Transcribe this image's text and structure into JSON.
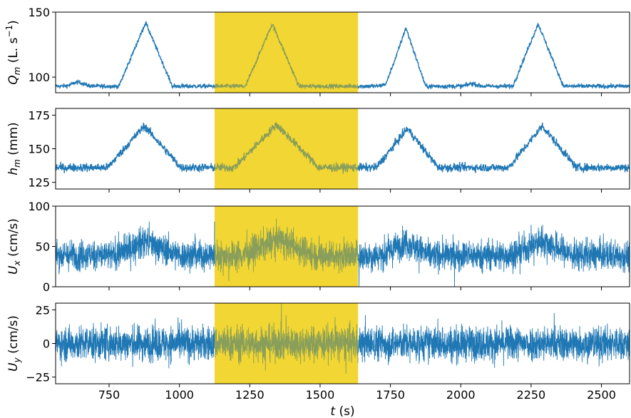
{
  "figure": {
    "highlight_color": "#f2d633",
    "highlight_range": [
      1125,
      1635
    ],
    "series_color": "#1f77b4",
    "overlap_color": "#889e5a"
  },
  "chart_data": [
    {
      "type": "line",
      "id": "Q",
      "ylabel": "Q_m (L. s^-1)",
      "ylabel_parts": {
        "sym": "Q",
        "sub": "m",
        "unit_pre": "(L. s",
        "sup": "−1",
        "unit_post": ")"
      },
      "xlim": [
        560,
        2600
      ],
      "ylim": [
        88,
        150
      ],
      "yticks": [
        100,
        150
      ],
      "ytick_labels": [
        "100",
        "150"
      ],
      "baseline": 93,
      "noise": 1.2,
      "peaks": [
        {
          "center": 880,
          "amplitude": 49,
          "half_width": 95
        },
        {
          "center": 1330,
          "amplitude": 48,
          "half_width": 95
        },
        {
          "center": 1805,
          "amplitude": 45,
          "half_width": 70
        },
        {
          "center": 2275,
          "amplitude": 48,
          "half_width": 90
        }
      ],
      "bumps": [
        {
          "center": 640,
          "amplitude": 3,
          "half_width": 40
        },
        {
          "center": 1740,
          "amplitude": 2,
          "half_width": 30
        },
        {
          "center": 2040,
          "amplitude": 2,
          "half_width": 30
        }
      ]
    },
    {
      "type": "line",
      "id": "h",
      "ylabel": "h_m (mm)",
      "ylabel_parts": {
        "sym": "h",
        "sub": "m",
        "unit_pre": "(mm)",
        "sup": "",
        "unit_post": ""
      },
      "xlim": [
        560,
        2600
      ],
      "ylim": [
        120,
        180
      ],
      "yticks": [
        125,
        150,
        175
      ],
      "ytick_labels": [
        "125",
        "150",
        "175"
      ],
      "baseline": 136,
      "noise": 2.2,
      "peaks": [
        {
          "center": 875,
          "amplitude": 31,
          "half_width": 130
        },
        {
          "center": 1345,
          "amplitude": 32,
          "half_width": 150
        },
        {
          "center": 1810,
          "amplitude": 29,
          "half_width": 110
        },
        {
          "center": 2290,
          "amplitude": 31,
          "half_width": 120
        }
      ],
      "bumps": []
    },
    {
      "type": "line",
      "id": "Ux",
      "ylabel": "U_x (cm/s)",
      "ylabel_parts": {
        "sym": "U",
        "sub": "x",
        "unit_pre": "(cm/s)",
        "sup": "",
        "unit_post": ""
      },
      "xlim": [
        560,
        2600
      ],
      "ylim": [
        0,
        100
      ],
      "yticks": [
        0,
        50,
        100
      ],
      "ytick_labels": [
        "0",
        "50",
        "100"
      ],
      "baseline": 39,
      "noise": 13,
      "peaks": [
        {
          "center": 880,
          "amplitude": 18,
          "half_width": 110
        },
        {
          "center": 1350,
          "amplitude": 20,
          "half_width": 130
        },
        {
          "center": 1805,
          "amplitude": 17,
          "half_width": 80
        },
        {
          "center": 2290,
          "amplitude": 18,
          "half_width": 110
        }
      ],
      "bumps": []
    },
    {
      "type": "line",
      "id": "Uy",
      "ylabel": "U_y (cm/s)",
      "ylabel_parts": {
        "sym": "U",
        "sub": "y",
        "unit_pre": "(cm/s)",
        "sup": "",
        "unit_post": ""
      },
      "xlim": [
        560,
        2600
      ],
      "ylim": [
        -30,
        30
      ],
      "yticks": [
        -25,
        0,
        25
      ],
      "ytick_labels": [
        "−25",
        "0",
        "25"
      ],
      "baseline": 0,
      "noise": 9,
      "peaks": [],
      "bumps": []
    }
  ],
  "xaxis": {
    "label_sym": "t",
    "label_unit": "(s)",
    "ticks": [
      750,
      1000,
      1250,
      1500,
      1750,
      2000,
      2250,
      2500
    ],
    "tick_labels": [
      "750",
      "1000",
      "1250",
      "1500",
      "1750",
      "2000",
      "2250",
      "2500"
    ]
  }
}
